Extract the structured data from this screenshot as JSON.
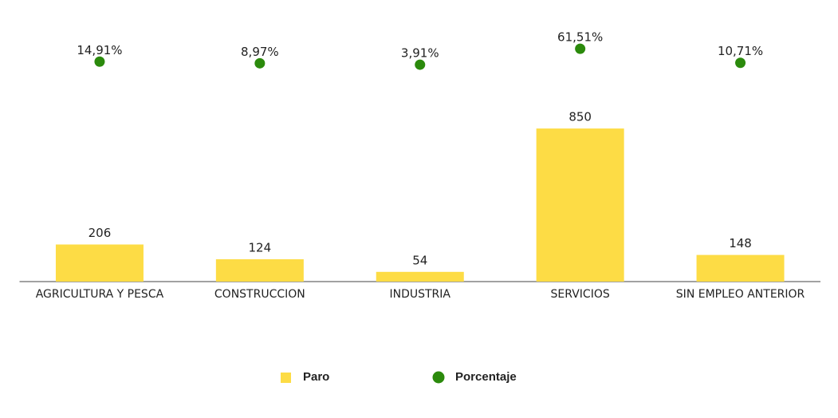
{
  "chart_data": {
    "type": "bar",
    "categories": [
      "AGRICULTURA Y PESCA",
      "CONSTRUCCION",
      "INDUSTRIA",
      "SERVICIOS",
      "SIN EMPLEO ANTERIOR"
    ],
    "series": [
      {
        "name": "Paro",
        "type": "bar",
        "color": "#fddc45",
        "values": [
          206,
          124,
          54,
          850,
          148
        ]
      },
      {
        "name": "Porcentaje",
        "type": "scatter",
        "axis": "y2",
        "color": "#2b8a0c",
        "values": [
          14.91,
          8.97,
          3.91,
          61.51,
          10.71
        ],
        "value_labels": [
          "14,91%",
          "8,97%",
          "3,91%",
          "61,51%",
          "10,71%"
        ]
      }
    ],
    "ylim": [
      0,
      1475
    ],
    "y2lim": [
      -780,
      180
    ],
    "legend": "bottom"
  }
}
